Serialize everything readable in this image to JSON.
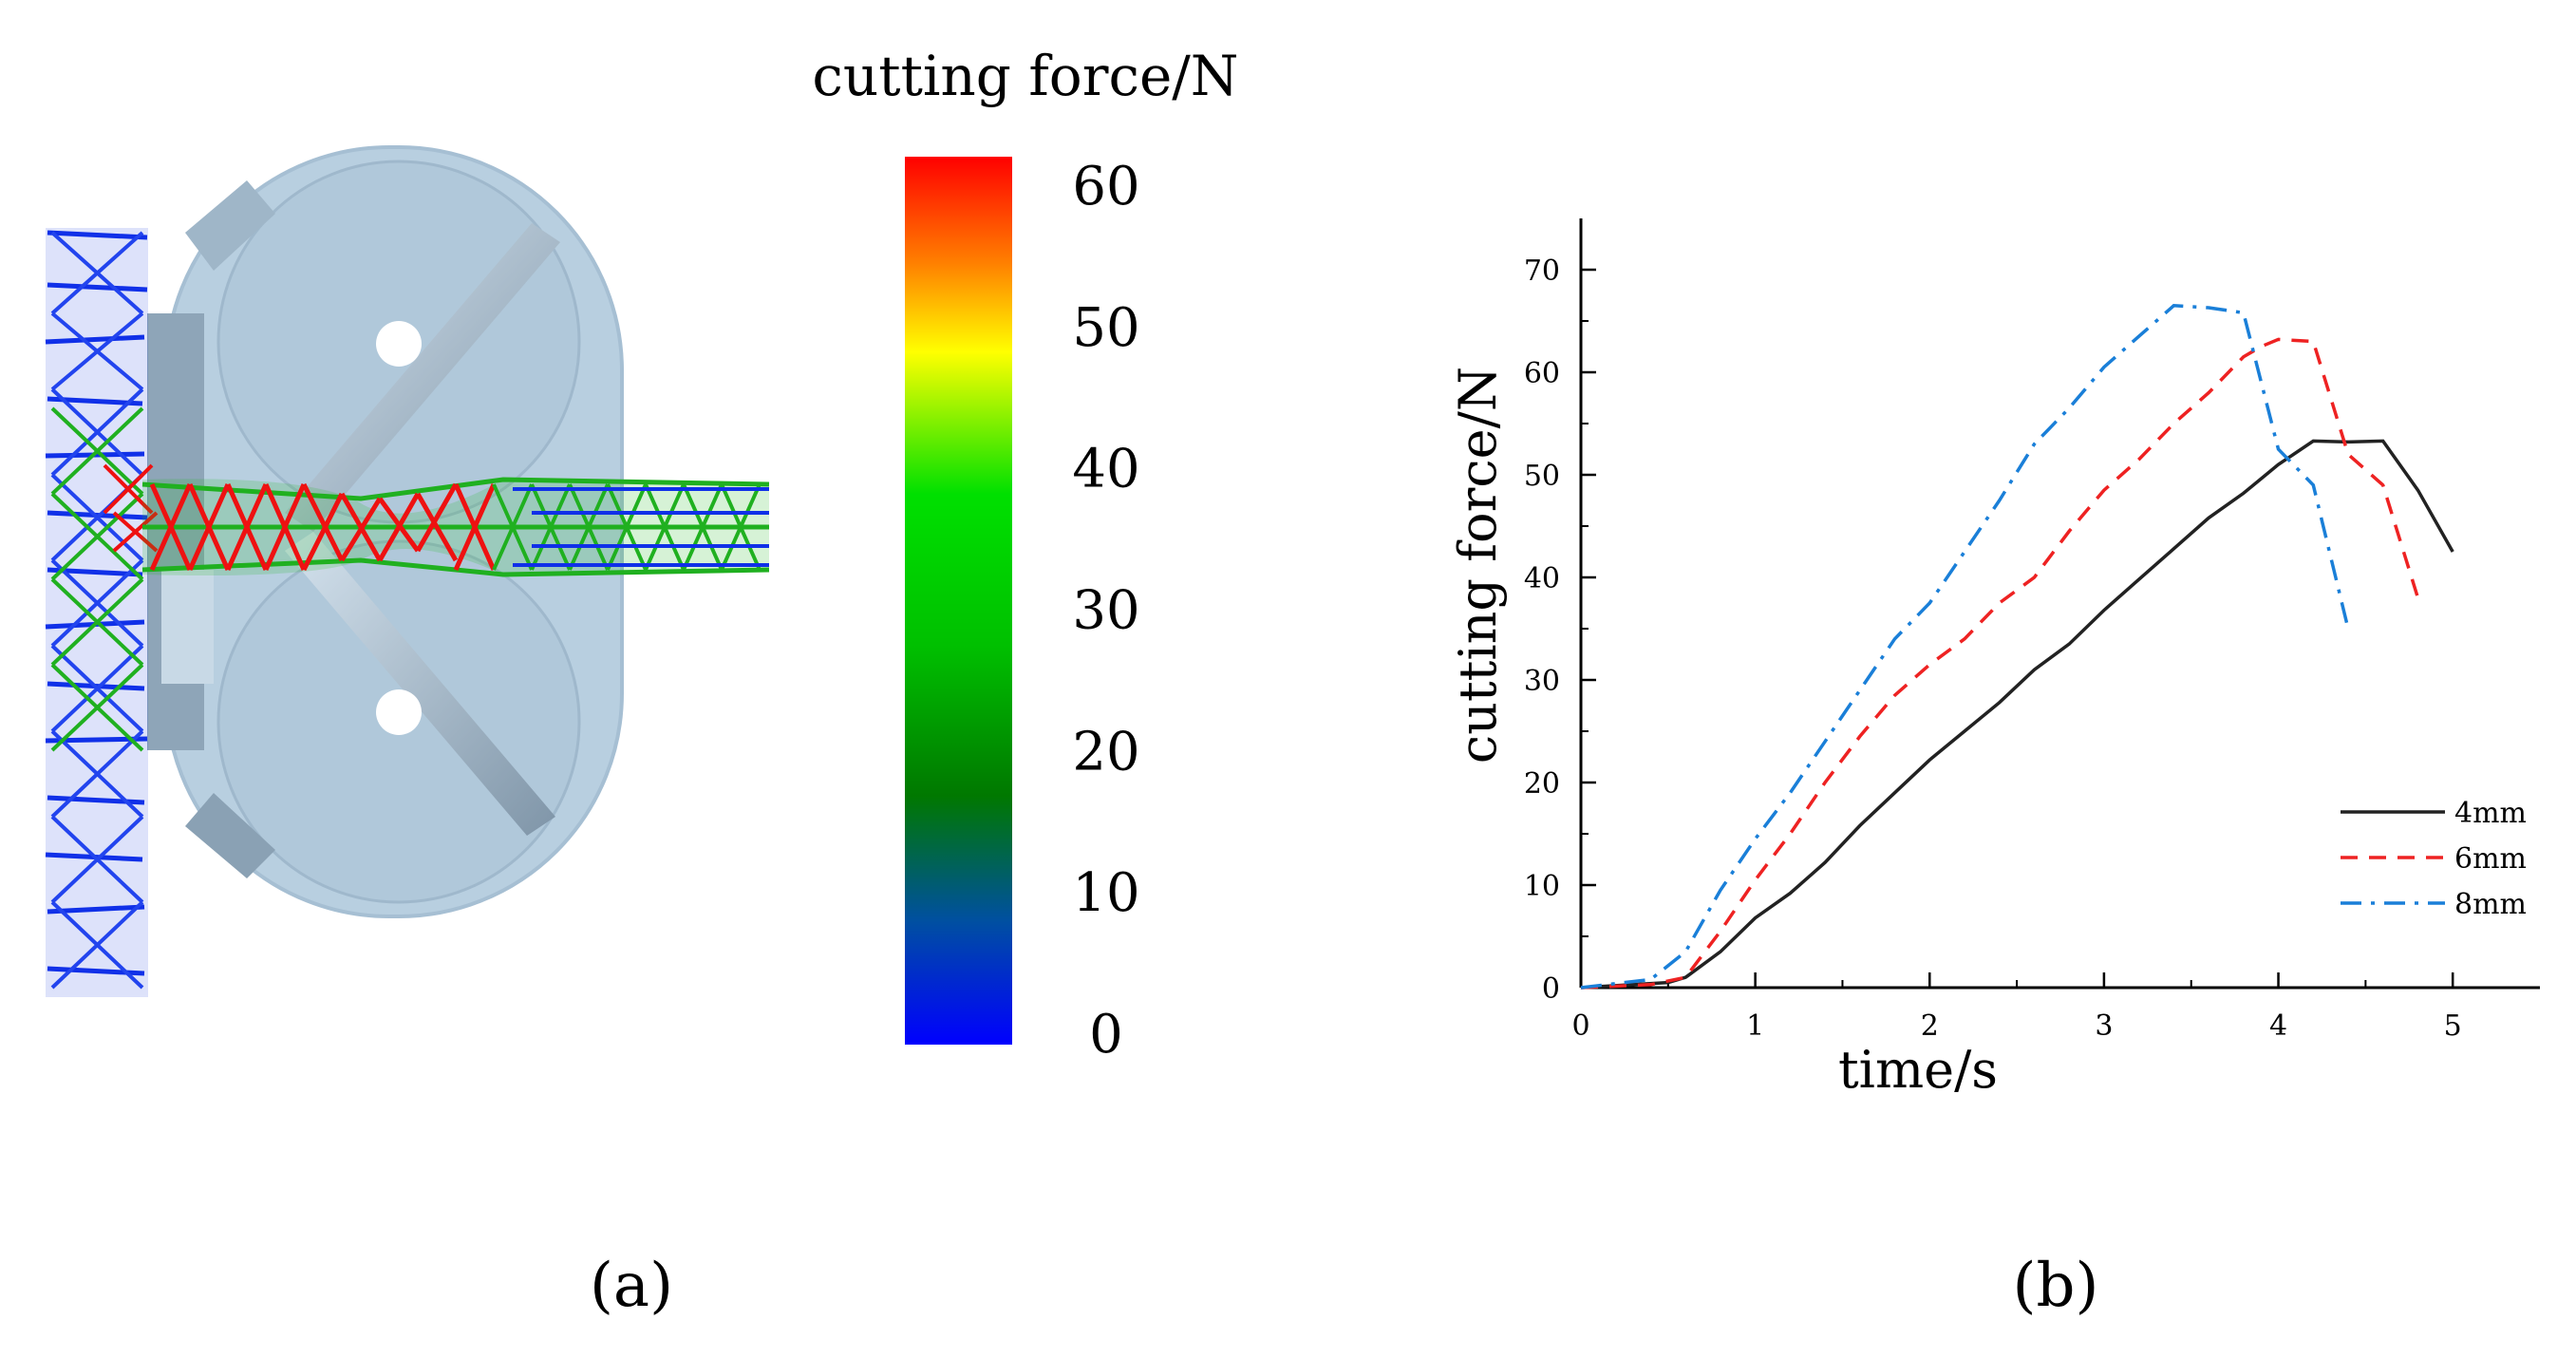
{
  "panel_a": {
    "label": "(a)",
    "colorbar": {
      "title": "cutting force/N",
      "ticks": [
        "60",
        "50",
        "40",
        "30",
        "20",
        "10",
        "0"
      ],
      "range": [
        0,
        62
      ],
      "colors": [
        "#0000ff",
        "#0050a0",
        "#007800",
        "#00c000",
        "#00e000",
        "#ffff00",
        "#ff8000",
        "#ff0000"
      ]
    },
    "model": {
      "body_color": "#b8cfe0",
      "mesh_colors": {
        "low": "#0a2ee6",
        "mid": "#1db81d",
        "high": "#ee1111"
      }
    }
  },
  "panel_b": {
    "label": "(b)",
    "chart_data": {
      "type": "line",
      "title": "",
      "xlabel": "time/s",
      "ylabel": "cutting force/N",
      "xlim": [
        0,
        5.5
      ],
      "ylim": [
        0,
        75
      ],
      "xticks": [
        0,
        1,
        2,
        3,
        4,
        5
      ],
      "yticks": [
        0,
        10,
        20,
        30,
        40,
        50,
        60,
        70
      ],
      "grid": false,
      "legend": "bottom-right",
      "series": [
        {
          "name": "4mm",
          "color": "#222222",
          "style": "solid",
          "x": [
            0,
            0.3,
            0.5,
            0.6,
            0.8,
            1.0,
            1.2,
            1.4,
            1.6,
            1.8,
            2.0,
            2.2,
            2.4,
            2.6,
            2.8,
            3.0,
            3.2,
            3.4,
            3.6,
            3.8,
            4.0,
            4.2,
            4.4,
            4.6,
            4.8,
            5.0
          ],
          "y": [
            0,
            0.3,
            0.5,
            1.0,
            3.5,
            6.8,
            9.2,
            12.2,
            15.8,
            19.0,
            22.2,
            25.0,
            27.8,
            31.0,
            33.5,
            36.8,
            39.8,
            42.8,
            45.8,
            48.2,
            51.0,
            53.3,
            53.2,
            53.3,
            48.5,
            42.5
          ]
        },
        {
          "name": "6mm",
          "color": "#ee2222",
          "style": "dashed",
          "x": [
            0,
            0.4,
            0.6,
            0.8,
            1.0,
            1.2,
            1.4,
            1.6,
            1.8,
            2.0,
            2.2,
            2.4,
            2.6,
            2.8,
            3.0,
            3.2,
            3.4,
            3.6,
            3.8,
            3.9,
            4.0,
            4.2,
            4.4,
            4.6,
            4.8
          ],
          "y": [
            0,
            0.3,
            1.0,
            5.5,
            10.5,
            15.0,
            20.0,
            24.5,
            28.5,
            31.5,
            34.0,
            37.5,
            40.0,
            44.5,
            48.5,
            51.5,
            55.0,
            58.0,
            61.5,
            62.5,
            63.2,
            63.0,
            52.0,
            49.0,
            38.0
          ]
        },
        {
          "name": "8mm",
          "color": "#1a7fd8",
          "style": "dashdot",
          "x": [
            0,
            0.4,
            0.6,
            0.8,
            1.0,
            1.2,
            1.4,
            1.6,
            1.8,
            2.0,
            2.2,
            2.4,
            2.6,
            2.8,
            3.0,
            3.2,
            3.4,
            3.6,
            3.8,
            4.0,
            4.2,
            4.4
          ],
          "y": [
            0,
            0.8,
            3.5,
            9.5,
            14.5,
            19.0,
            24.0,
            29.0,
            34.0,
            37.5,
            42.5,
            47.5,
            53.0,
            56.5,
            60.5,
            63.5,
            66.5,
            66.3,
            65.8,
            52.5,
            49.0,
            35.0
          ]
        }
      ]
    }
  }
}
